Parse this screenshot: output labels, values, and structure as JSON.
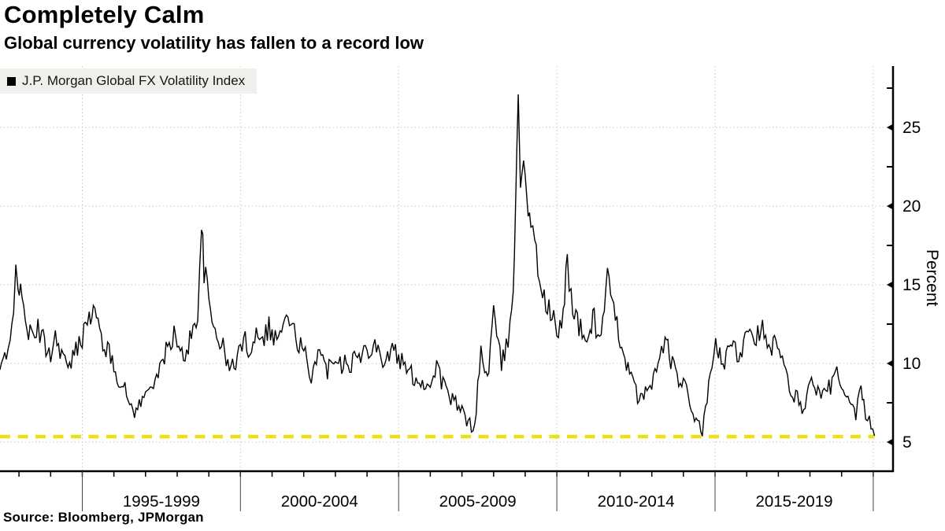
{
  "header": {
    "title": "Completely Calm",
    "subtitle": "Global currency volatility has fallen to a record low"
  },
  "legend": {
    "label": "J.P. Morgan Global FX Volatility Index"
  },
  "source_note": "Source: Bloomberg, JPMorgan",
  "colors": {
    "background": "#ffffff",
    "series": "#000000",
    "record_low_line": "#f0df13",
    "grid": "#c6c6c6",
    "axis": "#000000",
    "separator": "#444444",
    "legend_bg": "#efefec"
  },
  "chart_data": {
    "type": "line",
    "title": "Completely Calm",
    "subtitle": "Global currency volatility has fallen to a record low",
    "xlabel": "",
    "ylabel": "Percent",
    "grid": true,
    "legend_position": "top-left",
    "x_axis": {
      "xlim": [
        1992.4,
        2020.6
      ],
      "period_boundaries": [
        1995,
        2000,
        2005,
        2010,
        2015,
        2020
      ],
      "period_labels": [
        "1995-1999",
        "2000-2004",
        "2005-2009",
        "2010-2014",
        "2015-2019"
      ],
      "minor_tick_every_years": 1
    },
    "y_axis": {
      "unit": "Percent",
      "ylim": [
        3.2,
        28.9
      ],
      "ticks": [
        5,
        10,
        15,
        20,
        25
      ],
      "minor_ticks": [
        7.5,
        12.5,
        17.5,
        22.5,
        27.5
      ]
    },
    "reference_line": {
      "value": 5.35,
      "style": "dashed",
      "color": "#f0df13"
    },
    "series": [
      {
        "name": "J.P. Morgan Global FX Volatility Index",
        "color": "#000000",
        "points": [
          [
            1992.4,
            9.6
          ],
          [
            1992.5,
            10.3
          ],
          [
            1992.6,
            10.0
          ],
          [
            1992.72,
            11.2
          ],
          [
            1992.83,
            13.8
          ],
          [
            1992.9,
            17.2
          ],
          [
            1992.97,
            15.2
          ],
          [
            1993.05,
            14.2
          ],
          [
            1993.15,
            13.4
          ],
          [
            1993.3,
            12.1
          ],
          [
            1993.45,
            11.4
          ],
          [
            1993.6,
            12.3
          ],
          [
            1993.72,
            11.7
          ],
          [
            1993.85,
            11.0
          ],
          [
            1994.0,
            10.7
          ],
          [
            1994.15,
            11.7
          ],
          [
            1994.3,
            11.0
          ],
          [
            1994.45,
            10.3
          ],
          [
            1994.55,
            9.3
          ],
          [
            1994.7,
            10.4
          ],
          [
            1994.85,
            11.0
          ],
          [
            1995.0,
            11.7
          ],
          [
            1995.1,
            13.4
          ],
          [
            1995.22,
            12.6
          ],
          [
            1995.35,
            13.5
          ],
          [
            1995.5,
            12.4
          ],
          [
            1995.65,
            11.4
          ],
          [
            1995.8,
            10.8
          ],
          [
            1995.95,
            10.1
          ],
          [
            1996.1,
            9.3
          ],
          [
            1996.25,
            8.7
          ],
          [
            1996.4,
            8.0
          ],
          [
            1996.55,
            7.3
          ],
          [
            1996.7,
            6.9
          ],
          [
            1996.85,
            7.6
          ],
          [
            1997.0,
            7.9
          ],
          [
            1997.15,
            8.6
          ],
          [
            1997.3,
            9.2
          ],
          [
            1997.45,
            9.4
          ],
          [
            1997.6,
            10.5
          ],
          [
            1997.75,
            11.2
          ],
          [
            1997.9,
            11.9
          ],
          [
            1998.05,
            10.7
          ],
          [
            1998.2,
            10.4
          ],
          [
            1998.35,
            11.2
          ],
          [
            1998.5,
            12.1
          ],
          [
            1998.65,
            13.4
          ],
          [
            1998.77,
            18.6
          ],
          [
            1998.85,
            16.0
          ],
          [
            1998.95,
            14.6
          ],
          [
            1999.1,
            12.6
          ],
          [
            1999.25,
            12.0
          ],
          [
            1999.4,
            11.3
          ],
          [
            1999.55,
            10.2
          ],
          [
            1999.7,
            9.6
          ],
          [
            1999.85,
            10.2
          ],
          [
            2000.0,
            11.0
          ],
          [
            2000.15,
            11.4
          ],
          [
            2000.3,
            10.9
          ],
          [
            2000.45,
            11.7
          ],
          [
            2000.6,
            12.2
          ],
          [
            2000.75,
            11.8
          ],
          [
            2000.9,
            12.4
          ],
          [
            2001.05,
            11.6
          ],
          [
            2001.2,
            11.9
          ],
          [
            2001.35,
            12.2
          ],
          [
            2001.5,
            13.1
          ],
          [
            2001.6,
            12.3
          ],
          [
            2001.75,
            11.7
          ],
          [
            2001.9,
            11.1
          ],
          [
            2002.05,
            10.5
          ],
          [
            2002.18,
            8.7
          ],
          [
            2002.3,
            9.9
          ],
          [
            2002.45,
            10.9
          ],
          [
            2002.6,
            10.1
          ],
          [
            2002.75,
            9.6
          ],
          [
            2002.9,
            10.3
          ],
          [
            2003.05,
            10.7
          ],
          [
            2003.2,
            9.9
          ],
          [
            2003.35,
            10.5
          ],
          [
            2003.5,
            9.9
          ],
          [
            2003.65,
            10.7
          ],
          [
            2003.8,
            10.2
          ],
          [
            2003.95,
            10.9
          ],
          [
            2004.1,
            11.1
          ],
          [
            2004.25,
            11.5
          ],
          [
            2004.4,
            10.5
          ],
          [
            2004.55,
            10.2
          ],
          [
            2004.7,
            10.6
          ],
          [
            2004.85,
            10.9
          ],
          [
            2005.0,
            10.3
          ],
          [
            2005.15,
            9.9
          ],
          [
            2005.3,
            9.5
          ],
          [
            2005.45,
            9.2
          ],
          [
            2005.6,
            9.0
          ],
          [
            2005.75,
            8.8
          ],
          [
            2005.9,
            8.6
          ],
          [
            2006.05,
            8.9
          ],
          [
            2006.2,
            10.0
          ],
          [
            2006.35,
            8.9
          ],
          [
            2006.5,
            8.3
          ],
          [
            2006.65,
            7.8
          ],
          [
            2006.8,
            7.4
          ],
          [
            2006.95,
            7.0
          ],
          [
            2007.1,
            6.6
          ],
          [
            2007.25,
            6.1
          ],
          [
            2007.4,
            6.0
          ],
          [
            2007.5,
            8.4
          ],
          [
            2007.6,
            10.9
          ],
          [
            2007.72,
            9.2
          ],
          [
            2007.85,
            9.8
          ],
          [
            2008.0,
            13.5
          ],
          [
            2008.1,
            11.4
          ],
          [
            2008.25,
            10.0
          ],
          [
            2008.4,
            10.9
          ],
          [
            2008.52,
            12.2
          ],
          [
            2008.62,
            15.0
          ],
          [
            2008.7,
            21.0
          ],
          [
            2008.78,
            26.9
          ],
          [
            2008.85,
            21.6
          ],
          [
            2008.95,
            23.4
          ],
          [
            2009.05,
            21.0
          ],
          [
            2009.18,
            19.2
          ],
          [
            2009.3,
            17.3
          ],
          [
            2009.45,
            15.6
          ],
          [
            2009.6,
            14.1
          ],
          [
            2009.75,
            13.3
          ],
          [
            2009.9,
            12.8
          ],
          [
            2010.05,
            11.5
          ],
          [
            2010.2,
            13.2
          ],
          [
            2010.33,
            16.8
          ],
          [
            2010.45,
            14.2
          ],
          [
            2010.6,
            12.9
          ],
          [
            2010.75,
            12.1
          ],
          [
            2010.9,
            11.3
          ],
          [
            2011.05,
            12.2
          ],
          [
            2011.18,
            13.0
          ],
          [
            2011.3,
            11.7
          ],
          [
            2011.45,
            12.6
          ],
          [
            2011.6,
            15.6
          ],
          [
            2011.75,
            13.4
          ],
          [
            2011.9,
            12.4
          ],
          [
            2012.05,
            11.3
          ],
          [
            2012.2,
            10.1
          ],
          [
            2012.35,
            9.0
          ],
          [
            2012.5,
            8.2
          ],
          [
            2012.65,
            7.6
          ],
          [
            2012.8,
            8.1
          ],
          [
            2012.95,
            8.7
          ],
          [
            2013.1,
            9.4
          ],
          [
            2013.25,
            10.0
          ],
          [
            2013.42,
            11.8
          ],
          [
            2013.6,
            10.2
          ],
          [
            2013.75,
            9.3
          ],
          [
            2013.9,
            8.9
          ],
          [
            2014.05,
            8.4
          ],
          [
            2014.2,
            7.5
          ],
          [
            2014.35,
            6.7
          ],
          [
            2014.5,
            5.9
          ],
          [
            2014.6,
            5.6
          ],
          [
            2014.75,
            7.7
          ],
          [
            2014.9,
            9.6
          ],
          [
            2015.02,
            11.6
          ],
          [
            2015.15,
            10.4
          ],
          [
            2015.3,
            9.9
          ],
          [
            2015.45,
            10.8
          ],
          [
            2015.58,
            11.4
          ],
          [
            2015.7,
            10.3
          ],
          [
            2015.85,
            11.0
          ],
          [
            2016.0,
            12.6
          ],
          [
            2016.15,
            12.3
          ],
          [
            2016.3,
            11.6
          ],
          [
            2016.45,
            12.5
          ],
          [
            2016.6,
            11.3
          ],
          [
            2016.75,
            10.6
          ],
          [
            2016.88,
            11.3
          ],
          [
            2017.02,
            10.7
          ],
          [
            2017.18,
            9.6
          ],
          [
            2017.35,
            8.5
          ],
          [
            2017.5,
            7.9
          ],
          [
            2017.65,
            7.7
          ],
          [
            2017.8,
            7.1
          ],
          [
            2017.95,
            8.2
          ],
          [
            2018.1,
            9.2
          ],
          [
            2018.25,
            8.1
          ],
          [
            2018.4,
            7.8
          ],
          [
            2018.55,
            8.4
          ],
          [
            2018.7,
            8.7
          ],
          [
            2018.85,
            9.4
          ],
          [
            2019.0,
            8.3
          ],
          [
            2019.15,
            7.6
          ],
          [
            2019.3,
            7.1
          ],
          [
            2019.45,
            6.7
          ],
          [
            2019.57,
            8.5
          ],
          [
            2019.7,
            7.2
          ],
          [
            2019.82,
            6.5
          ],
          [
            2019.93,
            6.0
          ],
          [
            2020.04,
            5.4
          ]
        ]
      }
    ]
  }
}
